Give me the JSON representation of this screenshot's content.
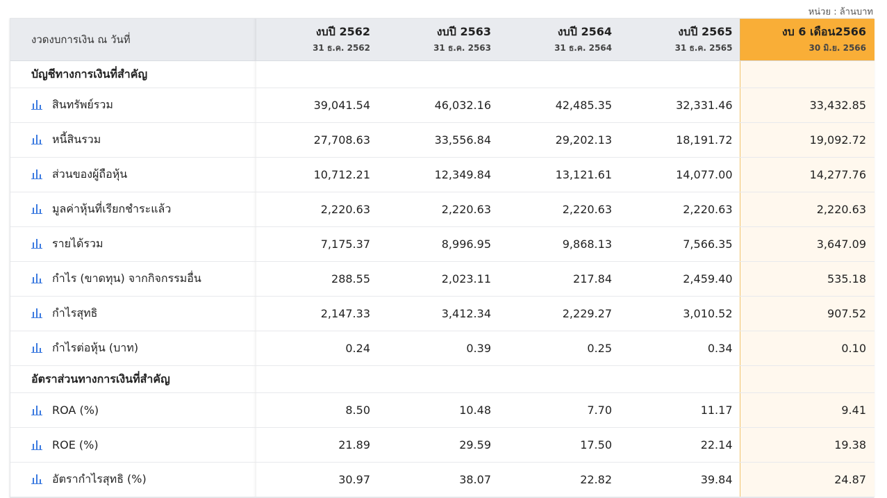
{
  "unit_label": "หน่วย : ล้านบาท",
  "header": {
    "label": "งวดงบการเงิน ณ วันที่",
    "columns": [
      {
        "title": "งบปี 2562",
        "date": "31 ธ.ค. 2562"
      },
      {
        "title": "งบปี 2563",
        "date": "31 ธ.ค. 2563"
      },
      {
        "title": "งบปี 2564",
        "date": "31 ธ.ค. 2564"
      },
      {
        "title": "งบปี 2565",
        "date": "31 ธ.ค. 2565"
      },
      {
        "title": "งบ 6 เดือน2566",
        "date": "30 มิ.ย. 2566"
      }
    ]
  },
  "sections": [
    {
      "title": "บัญชีทางการเงินที่สำคัญ",
      "rows": [
        {
          "label": "สินทรัพย์รวม",
          "values": [
            "39,041.54",
            "46,032.16",
            "42,485.35",
            "32,331.46",
            "33,432.85"
          ]
        },
        {
          "label": "หนี้สินรวม",
          "values": [
            "27,708.63",
            "33,556.84",
            "29,202.13",
            "18,191.72",
            "19,092.72"
          ]
        },
        {
          "label": "ส่วนของผู้ถือหุ้น",
          "values": [
            "10,712.21",
            "12,349.84",
            "13,121.61",
            "14,077.00",
            "14,277.76"
          ]
        },
        {
          "label": "มูลค่าหุ้นที่เรียกชำระแล้ว",
          "values": [
            "2,220.63",
            "2,220.63",
            "2,220.63",
            "2,220.63",
            "2,220.63"
          ]
        },
        {
          "label": "รายได้รวม",
          "values": [
            "7,175.37",
            "8,996.95",
            "9,868.13",
            "7,566.35",
            "3,647.09"
          ]
        },
        {
          "label": "กำไร (ขาดทุน) จากกิจกรรมอื่น",
          "values": [
            "288.55",
            "2,023.11",
            "217.84",
            "2,459.40",
            "535.18"
          ]
        },
        {
          "label": "กำไรสุทธิ",
          "values": [
            "2,147.33",
            "3,412.34",
            "2,229.27",
            "3,010.52",
            "907.52"
          ]
        },
        {
          "label": "กำไรต่อหุ้น (บาท)",
          "values": [
            "0.24",
            "0.39",
            "0.25",
            "0.34",
            "0.10"
          ]
        }
      ]
    },
    {
      "title": "อัตราส่วนทางการเงินที่สำคัญ",
      "rows": [
        {
          "label": "ROA (%)",
          "values": [
            "8.50",
            "10.48",
            "7.70",
            "11.17",
            "9.41"
          ]
        },
        {
          "label": "ROE (%)",
          "values": [
            "21.89",
            "29.59",
            "17.50",
            "22.14",
            "19.38"
          ]
        },
        {
          "label": "อัตรากำไรสุทธิ (%)",
          "values": [
            "30.97",
            "38.07",
            "22.82",
            "39.84",
            "24.87"
          ]
        }
      ]
    }
  ],
  "colors": {
    "highlight_header": "#f9ae37",
    "highlight_cell": "#fff8ee",
    "header_bg": "#e9ebef",
    "chart_icon": "#3b7ae0"
  },
  "icons": {
    "row_icon": "bar-chart-icon"
  }
}
